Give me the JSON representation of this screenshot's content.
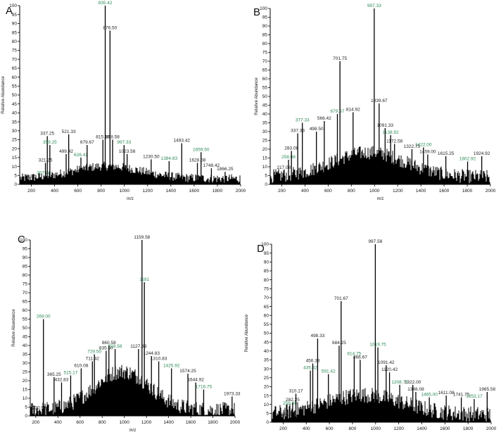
{
  "chart_data": [
    {
      "type": "bar",
      "panel_label": "A",
      "xlabel": "m/z",
      "ylabel": "Relative Abundance",
      "xlim": [
        100,
        2000
      ],
      "ylim": [
        0,
        100
      ],
      "xticks": [
        200,
        400,
        600,
        800,
        1000,
        1200,
        1400,
        1600,
        1800,
        2000
      ],
      "yticks": [
        0,
        5,
        10,
        15,
        20,
        25,
        30,
        35,
        40,
        45,
        50,
        55,
        60,
        65,
        70,
        75,
        80,
        85,
        90,
        95,
        100
      ],
      "noise": {
        "center": 850,
        "width": 420,
        "amp": 7,
        "base": 2.5,
        "jitter": 5
      },
      "peaks": [
        {
          "mz": 174.92,
          "label": "174.92",
          "intensity": 3
        },
        {
          "mz": 307.08,
          "label": "307.08",
          "intensity": 5
        },
        {
          "mz": 321.25,
          "label": "321.25",
          "intensity": 12
        },
        {
          "mz": 337.25,
          "label": "337.25",
          "intensity": 27
        },
        {
          "mz": 359.25,
          "label": "359.25",
          "intensity": 22
        },
        {
          "mz": 499.42,
          "label": "499.42",
          "intensity": 17
        },
        {
          "mz": 521.33,
          "label": "521.33",
          "intensity": 28
        },
        {
          "mz": 626.42,
          "label": "626.42",
          "intensity": 15
        },
        {
          "mz": 679.67,
          "label": "679.67",
          "intensity": 22
        },
        {
          "mz": 815.5,
          "label": "815.50",
          "intensity": 25
        },
        {
          "mz": 835.42,
          "label": "835.42",
          "intensity": 100
        },
        {
          "mz": 876.5,
          "label": "876.50",
          "intensity": 86
        },
        {
          "mz": 898.58,
          "label": "898.58",
          "intensity": 25
        },
        {
          "mz": 997.33,
          "label": "997.33",
          "intensity": 22
        },
        {
          "mz": 1023.58,
          "label": "1023.58",
          "intensity": 17
        },
        {
          "mz": 1230.5,
          "label": "1230.50",
          "intensity": 14
        },
        {
          "mz": 1384.83,
          "label": "1384.83",
          "intensity": 13
        },
        {
          "mz": 1493.42,
          "label": "1493.42",
          "intensity": 23
        },
        {
          "mz": 1628.08,
          "label": "1628.08",
          "intensity": 12
        },
        {
          "mz": 1659.5,
          "label": "1659.50",
          "intensity": 18
        },
        {
          "mz": 1748.42,
          "label": "1748.42",
          "intensity": 9
        },
        {
          "mz": 1866.25,
          "label": "1866.25",
          "intensity": 7
        }
      ]
    },
    {
      "type": "bar",
      "panel_label": "B",
      "xlabel": "m/z",
      "ylabel": "Relative Abundance",
      "xlim": [
        100,
        2000
      ],
      "ylim": [
        0,
        100
      ],
      "xticks": [
        200,
        400,
        600,
        800,
        1000,
        1200,
        1400,
        1600,
        1800,
        2000
      ],
      "yticks": [
        0,
        5,
        10,
        15,
        20,
        25,
        30,
        35,
        40,
        45,
        50,
        55,
        60,
        65,
        70,
        75,
        80,
        85,
        90,
        95,
        100
      ],
      "noise": {
        "center": 950,
        "width": 450,
        "amp": 14,
        "base": 3,
        "jitter": 8
      },
      "peaks": [
        {
          "mz": 217.08,
          "label": "217.08",
          "intensity": 8
        },
        {
          "mz": 258.08,
          "label": "258.08",
          "intensity": 14
        },
        {
          "mz": 283.08,
          "label": "283.08",
          "intensity": 19
        },
        {
          "mz": 337.33,
          "label": "337.33",
          "intensity": 29
        },
        {
          "mz": 377.33,
          "label": "377.33",
          "intensity": 35
        },
        {
          "mz": 498.5,
          "label": "498.50",
          "intensity": 30
        },
        {
          "mz": 566.42,
          "label": "566.42",
          "intensity": 36
        },
        {
          "mz": 679.67,
          "label": "679.67",
          "intensity": 40
        },
        {
          "mz": 701.75,
          "label": "701.75",
          "intensity": 70
        },
        {
          "mz": 814.92,
          "label": "814.92",
          "intensity": 41
        },
        {
          "mz": 997.33,
          "label": "997.33",
          "intensity": 100
        },
        {
          "mz": 1039.67,
          "label": "1039.67",
          "intensity": 46
        },
        {
          "mz": 1091.33,
          "label": "1091.33",
          "intensity": 32
        },
        {
          "mz": 1138.92,
          "label": "1138.92",
          "intensity": 28
        },
        {
          "mz": 1172.58,
          "label": "1172.58",
          "intensity": 23
        },
        {
          "mz": 1322.75,
          "label": "1322.75",
          "intensity": 20
        },
        {
          "mz": 1422.0,
          "label": "1422.00",
          "intensity": 21
        },
        {
          "mz": 1459.0,
          "label": "1459.00",
          "intensity": 17
        },
        {
          "mz": 1615.25,
          "label": "1615.25",
          "intensity": 16
        },
        {
          "mz": 1802.92,
          "label": "1802.92",
          "intensity": 13
        },
        {
          "mz": 1924.92,
          "label": "1924.92",
          "intensity": 16
        }
      ]
    },
    {
      "type": "bar",
      "panel_label": "C",
      "xlabel": "m/z",
      "ylabel": "Relative Abundance",
      "xlim": [
        150,
        2000
      ],
      "ylim": [
        0,
        100
      ],
      "xticks": [
        200,
        400,
        600,
        800,
        1000,
        1200,
        1400,
        1600,
        1800,
        2000
      ],
      "yticks": [
        0,
        5,
        10,
        15,
        20,
        25,
        30,
        35,
        40,
        45,
        50,
        55,
        60,
        65,
        70,
        75,
        80,
        85,
        90,
        95,
        100
      ],
      "noise": {
        "center": 980,
        "width": 350,
        "amp": 22,
        "base": 2,
        "jitter": 9
      },
      "peaks": [
        {
          "mz": 230.92,
          "label": "230.92",
          "intensity": 3
        },
        {
          "mz": 269.0,
          "label": "269.00",
          "intensity": 55
        },
        {
          "mz": 365.25,
          "label": "365.25",
          "intensity": 22
        },
        {
          "mz": 432.83,
          "label": "432.83",
          "intensity": 19
        },
        {
          "mz": 515.17,
          "label": "515.17",
          "intensity": 23
        },
        {
          "mz": 610.08,
          "label": "610.08",
          "intensity": 27
        },
        {
          "mz": 711.42,
          "label": "711.42",
          "intensity": 31
        },
        {
          "mz": 729.5,
          "label": "729.50",
          "intensity": 35
        },
        {
          "mz": 835.5,
          "label": "835.50",
          "intensity": 37
        },
        {
          "mz": 860.58,
          "label": "860.58",
          "intensity": 40
        },
        {
          "mz": 916.58,
          "label": "916.58",
          "intensity": 38
        },
        {
          "mz": 1127.83,
          "label": "1127.83",
          "intensity": 38
        },
        {
          "mz": 1159.58,
          "label": "1159.58",
          "intensity": 100
        },
        {
          "mz": 1181.0,
          "label": "1181",
          "intensity": 76
        },
        {
          "mz": 1244.83,
          "label": "1244.83",
          "intensity": 34
        },
        {
          "mz": 1310.83,
          "label": "1310.83",
          "intensity": 31
        },
        {
          "mz": 1425.92,
          "label": "1425.92",
          "intensity": 27
        },
        {
          "mz": 1574.25,
          "label": "1574.25",
          "intensity": 24
        },
        {
          "mz": 1644.92,
          "label": "1644.92",
          "intensity": 19
        },
        {
          "mz": 1716.75,
          "label": "1716.75",
          "intensity": 15
        },
        {
          "mz": 1973.33,
          "label": "1973.33",
          "intensity": 11
        }
      ]
    },
    {
      "type": "bar",
      "panel_label": "D",
      "xlabel": "m/z",
      "ylabel": "Relative Abundance",
      "xlim": [
        100,
        2000
      ],
      "ylim": [
        0,
        100
      ],
      "xticks": [
        200,
        400,
        600,
        800,
        1000,
        1200,
        1400,
        1600,
        1800,
        2000
      ],
      "yticks": [
        0,
        5,
        10,
        15,
        20,
        25,
        30,
        35,
        40,
        45,
        50,
        55,
        60,
        65,
        70,
        75,
        80,
        85,
        90,
        95,
        100
      ],
      "noise": {
        "center": 900,
        "width": 480,
        "amp": 11,
        "base": 3,
        "jitter": 9
      },
      "peaks": [
        {
          "mz": 234.25,
          "label": "234.25",
          "intensity": 3
        },
        {
          "mz": 258.08,
          "label": "258.08",
          "intensity": 9
        },
        {
          "mz": 282.25,
          "label": "282.25",
          "intensity": 11
        },
        {
          "mz": 310.17,
          "label": "310.17",
          "intensity": 16
        },
        {
          "mz": 435.42,
          "label": "435.42",
          "intensity": 29
        },
        {
          "mz": 456.33,
          "label": "456.33",
          "intensity": 33
        },
        {
          "mz": 498.33,
          "label": "498.33",
          "intensity": 47
        },
        {
          "mz": 591.42,
          "label": "591.42",
          "intensity": 27
        },
        {
          "mz": 684.25,
          "label": "684.25",
          "intensity": 43
        },
        {
          "mz": 701.67,
          "label": "701.67",
          "intensity": 68
        },
        {
          "mz": 814.75,
          "label": "814.75",
          "intensity": 37
        },
        {
          "mz": 866.67,
          "label": "866.67",
          "intensity": 35
        },
        {
          "mz": 997.58,
          "label": "997.58",
          "intensity": 100
        },
        {
          "mz": 1019.75,
          "label": "1019.75",
          "intensity": 42
        },
        {
          "mz": 1091.42,
          "label": "1091.42",
          "intensity": 32
        },
        {
          "mz": 1120.42,
          "label": "1120.42",
          "intensity": 28
        },
        {
          "mz": 1208.75,
          "label": "1208.75",
          "intensity": 21
        },
        {
          "mz": 1322.0,
          "label": "1322.00",
          "intensity": 21
        },
        {
          "mz": 1348.08,
          "label": "1348.08",
          "intensity": 17
        },
        {
          "mz": 1465.0,
          "label": "1465.00",
          "intensity": 14
        },
        {
          "mz": 1611.08,
          "label": "1611.08",
          "intensity": 15
        },
        {
          "mz": 1741.75,
          "label": "1741.75",
          "intensity": 14
        },
        {
          "mz": 1853.17,
          "label": "1853.17",
          "intensity": 13
        },
        {
          "mz": 1965.58,
          "label": "1965.58",
          "intensity": 17
        }
      ]
    }
  ],
  "colors": {
    "trace": "#000000",
    "label_text": "#222222",
    "label_green": "#2e8b57",
    "axis": "#000000"
  }
}
